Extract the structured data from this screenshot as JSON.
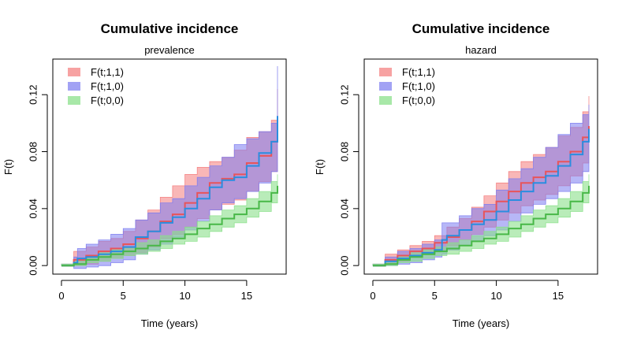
{
  "figure": {
    "background": "#ffffff"
  },
  "chart_data": [
    {
      "type": "line",
      "title": "Cumulative incidence",
      "subtitle": "prevalence",
      "xlabel": "Time (years)",
      "ylabel": "F(t)",
      "xlim": [
        -0.7,
        18.2
      ],
      "ylim": [
        -0.006,
        0.145
      ],
      "xticks": [
        0,
        5,
        10,
        15
      ],
      "xtick_labels": [
        "0",
        "5",
        "10",
        "15"
      ],
      "yticks": [
        0.0,
        0.04,
        0.08,
        0.12
      ],
      "ytick_labels": [
        "0.00",
        "0.04",
        "0.08",
        "0.12"
      ],
      "legend_position": "top-left",
      "series": [
        {
          "name": "F(t;1,1)",
          "color": "#f47b7b",
          "line_color": "#e8545a",
          "fill_opacity": 0.55,
          "x": [
            0,
            1,
            2,
            3,
            4,
            5,
            6,
            7,
            8,
            9,
            10,
            11,
            12,
            13,
            14,
            15,
            16,
            17,
            17.5
          ],
          "mid": [
            0.0,
            0.004,
            0.007,
            0.01,
            0.012,
            0.015,
            0.019,
            0.024,
            0.031,
            0.036,
            0.044,
            0.051,
            0.058,
            0.061,
            0.064,
            0.072,
            0.077,
            0.087,
            0.102
          ],
          "upper": [
            0.001,
            0.01,
            0.013,
            0.017,
            0.019,
            0.024,
            0.032,
            0.039,
            0.048,
            0.056,
            0.064,
            0.069,
            0.073,
            0.076,
            0.081,
            0.09,
            0.094,
            0.102,
            0.124
          ],
          "lower": [
            0.0,
            0.0,
            0.001,
            0.003,
            0.005,
            0.007,
            0.009,
            0.013,
            0.019,
            0.022,
            0.027,
            0.033,
            0.039,
            0.043,
            0.046,
            0.052,
            0.059,
            0.066,
            0.078
          ]
        },
        {
          "name": "F(t;1,0)",
          "color": "#7b7bf0",
          "line_color": "#2a8de0",
          "fill_opacity": 0.55,
          "x": [
            0,
            1,
            1.3,
            2,
            3,
            4,
            5,
            6,
            7,
            8,
            9,
            10,
            11,
            12,
            13,
            14,
            15,
            16,
            17,
            17.5
          ],
          "mid": [
            0.0,
            0.002,
            0.005,
            0.006,
            0.008,
            0.01,
            0.013,
            0.02,
            0.024,
            0.03,
            0.034,
            0.04,
            0.047,
            0.055,
            0.06,
            0.062,
            0.07,
            0.079,
            0.087,
            0.105
          ],
          "upper": [
            0.001,
            0.006,
            0.012,
            0.015,
            0.018,
            0.022,
            0.026,
            0.032,
            0.037,
            0.044,
            0.047,
            0.056,
            0.062,
            0.07,
            0.076,
            0.085,
            0.089,
            0.094,
            0.1,
            0.14
          ],
          "lower": [
            0.0,
            -0.002,
            -0.002,
            -0.001,
            0.0,
            0.002,
            0.004,
            0.008,
            0.011,
            0.015,
            0.02,
            0.025,
            0.031,
            0.039,
            0.044,
            0.047,
            0.052,
            0.058,
            0.066,
            0.08
          ]
        },
        {
          "name": "F(t;0,0)",
          "color": "#8be08b",
          "line_color": "#48b848",
          "fill_opacity": 0.6,
          "x": [
            0,
            1,
            2,
            3,
            4,
            5,
            6,
            7,
            8,
            9,
            10,
            11,
            12,
            13,
            14,
            15,
            16,
            17,
            17.5
          ],
          "mid": [
            0.0,
            0.001,
            0.004,
            0.006,
            0.008,
            0.01,
            0.012,
            0.014,
            0.017,
            0.019,
            0.022,
            0.026,
            0.029,
            0.033,
            0.036,
            0.04,
            0.045,
            0.051,
            0.056
          ],
          "upper": [
            0.001,
            0.004,
            0.007,
            0.009,
            0.011,
            0.013,
            0.016,
            0.018,
            0.021,
            0.024,
            0.027,
            0.031,
            0.035,
            0.039,
            0.042,
            0.047,
            0.052,
            0.059,
            0.064
          ],
          "lower": [
            0.0,
            0.0,
            0.002,
            0.003,
            0.005,
            0.007,
            0.008,
            0.01,
            0.012,
            0.015,
            0.017,
            0.02,
            0.024,
            0.027,
            0.03,
            0.034,
            0.038,
            0.044,
            0.048
          ]
        }
      ]
    },
    {
      "type": "line",
      "title": "Cumulative incidence",
      "subtitle": "hazard",
      "xlabel": "Time (years)",
      "ylabel": "F(t)",
      "xlim": [
        -0.7,
        18.2
      ],
      "ylim": [
        -0.006,
        0.145
      ],
      "xticks": [
        0,
        5,
        10,
        15
      ],
      "xtick_labels": [
        "0",
        "5",
        "10",
        "15"
      ],
      "yticks": [
        0.0,
        0.04,
        0.08,
        0.12
      ],
      "ytick_labels": [
        "0.00",
        "0.04",
        "0.08",
        "0.12"
      ],
      "legend_position": "top-left",
      "series": [
        {
          "name": "F(t;1,1)",
          "color": "#f47b7b",
          "line_color": "#e8545a",
          "fill_opacity": 0.55,
          "x": [
            0,
            1,
            2,
            3,
            4,
            5,
            6,
            7,
            8,
            9,
            10,
            11,
            12,
            13,
            14,
            15,
            16,
            17,
            17.5
          ],
          "mid": [
            0.0,
            0.004,
            0.007,
            0.01,
            0.012,
            0.016,
            0.02,
            0.025,
            0.031,
            0.038,
            0.045,
            0.052,
            0.058,
            0.062,
            0.066,
            0.073,
            0.08,
            0.09,
            0.098
          ],
          "upper": [
            0.001,
            0.008,
            0.011,
            0.014,
            0.017,
            0.021,
            0.027,
            0.033,
            0.041,
            0.049,
            0.058,
            0.066,
            0.073,
            0.078,
            0.083,
            0.091,
            0.097,
            0.108,
            0.119
          ],
          "lower": [
            0.0,
            0.001,
            0.003,
            0.006,
            0.008,
            0.011,
            0.014,
            0.018,
            0.022,
            0.027,
            0.032,
            0.037,
            0.042,
            0.046,
            0.05,
            0.056,
            0.063,
            0.072,
            0.078
          ]
        },
        {
          "name": "F(t;1,0)",
          "color": "#7b7bf0",
          "line_color": "#2a8de0",
          "fill_opacity": 0.55,
          "x": [
            0,
            1,
            2,
            3,
            4,
            5,
            5.6,
            6,
            7,
            8,
            9,
            10,
            11,
            12,
            13,
            14,
            15,
            16,
            17,
            17.5
          ],
          "mid": [
            0.0,
            0.003,
            0.005,
            0.007,
            0.009,
            0.011,
            0.018,
            0.021,
            0.025,
            0.029,
            0.032,
            0.038,
            0.046,
            0.052,
            0.058,
            0.063,
            0.07,
            0.078,
            0.087,
            0.096
          ],
          "upper": [
            0.001,
            0.006,
            0.01,
            0.012,
            0.015,
            0.018,
            0.03,
            0.03,
            0.035,
            0.04,
            0.043,
            0.053,
            0.061,
            0.068,
            0.076,
            0.083,
            0.092,
            0.1,
            0.106,
            0.113
          ],
          "lower": [
            0.0,
            0.0,
            0.001,
            0.002,
            0.004,
            0.006,
            0.008,
            0.011,
            0.014,
            0.017,
            0.021,
            0.025,
            0.031,
            0.037,
            0.043,
            0.047,
            0.052,
            0.058,
            0.066,
            0.078
          ]
        },
        {
          "name": "F(t;0,0)",
          "color": "#8be08b",
          "line_color": "#48b848",
          "fill_opacity": 0.6,
          "x": [
            0,
            1,
            2,
            3,
            4,
            5,
            6,
            7,
            8,
            9,
            10,
            11,
            12,
            13,
            14,
            15,
            16,
            17,
            17.5
          ],
          "mid": [
            0.0,
            0.001,
            0.004,
            0.006,
            0.008,
            0.01,
            0.012,
            0.014,
            0.017,
            0.019,
            0.022,
            0.026,
            0.029,
            0.033,
            0.036,
            0.04,
            0.045,
            0.051,
            0.056
          ],
          "upper": [
            0.001,
            0.004,
            0.007,
            0.009,
            0.011,
            0.013,
            0.016,
            0.018,
            0.021,
            0.024,
            0.027,
            0.031,
            0.035,
            0.039,
            0.042,
            0.047,
            0.052,
            0.059,
            0.064
          ],
          "lower": [
            0.0,
            0.0,
            0.002,
            0.003,
            0.005,
            0.007,
            0.008,
            0.01,
            0.012,
            0.015,
            0.017,
            0.02,
            0.024,
            0.027,
            0.03,
            0.034,
            0.038,
            0.044,
            0.048
          ]
        }
      ]
    }
  ]
}
